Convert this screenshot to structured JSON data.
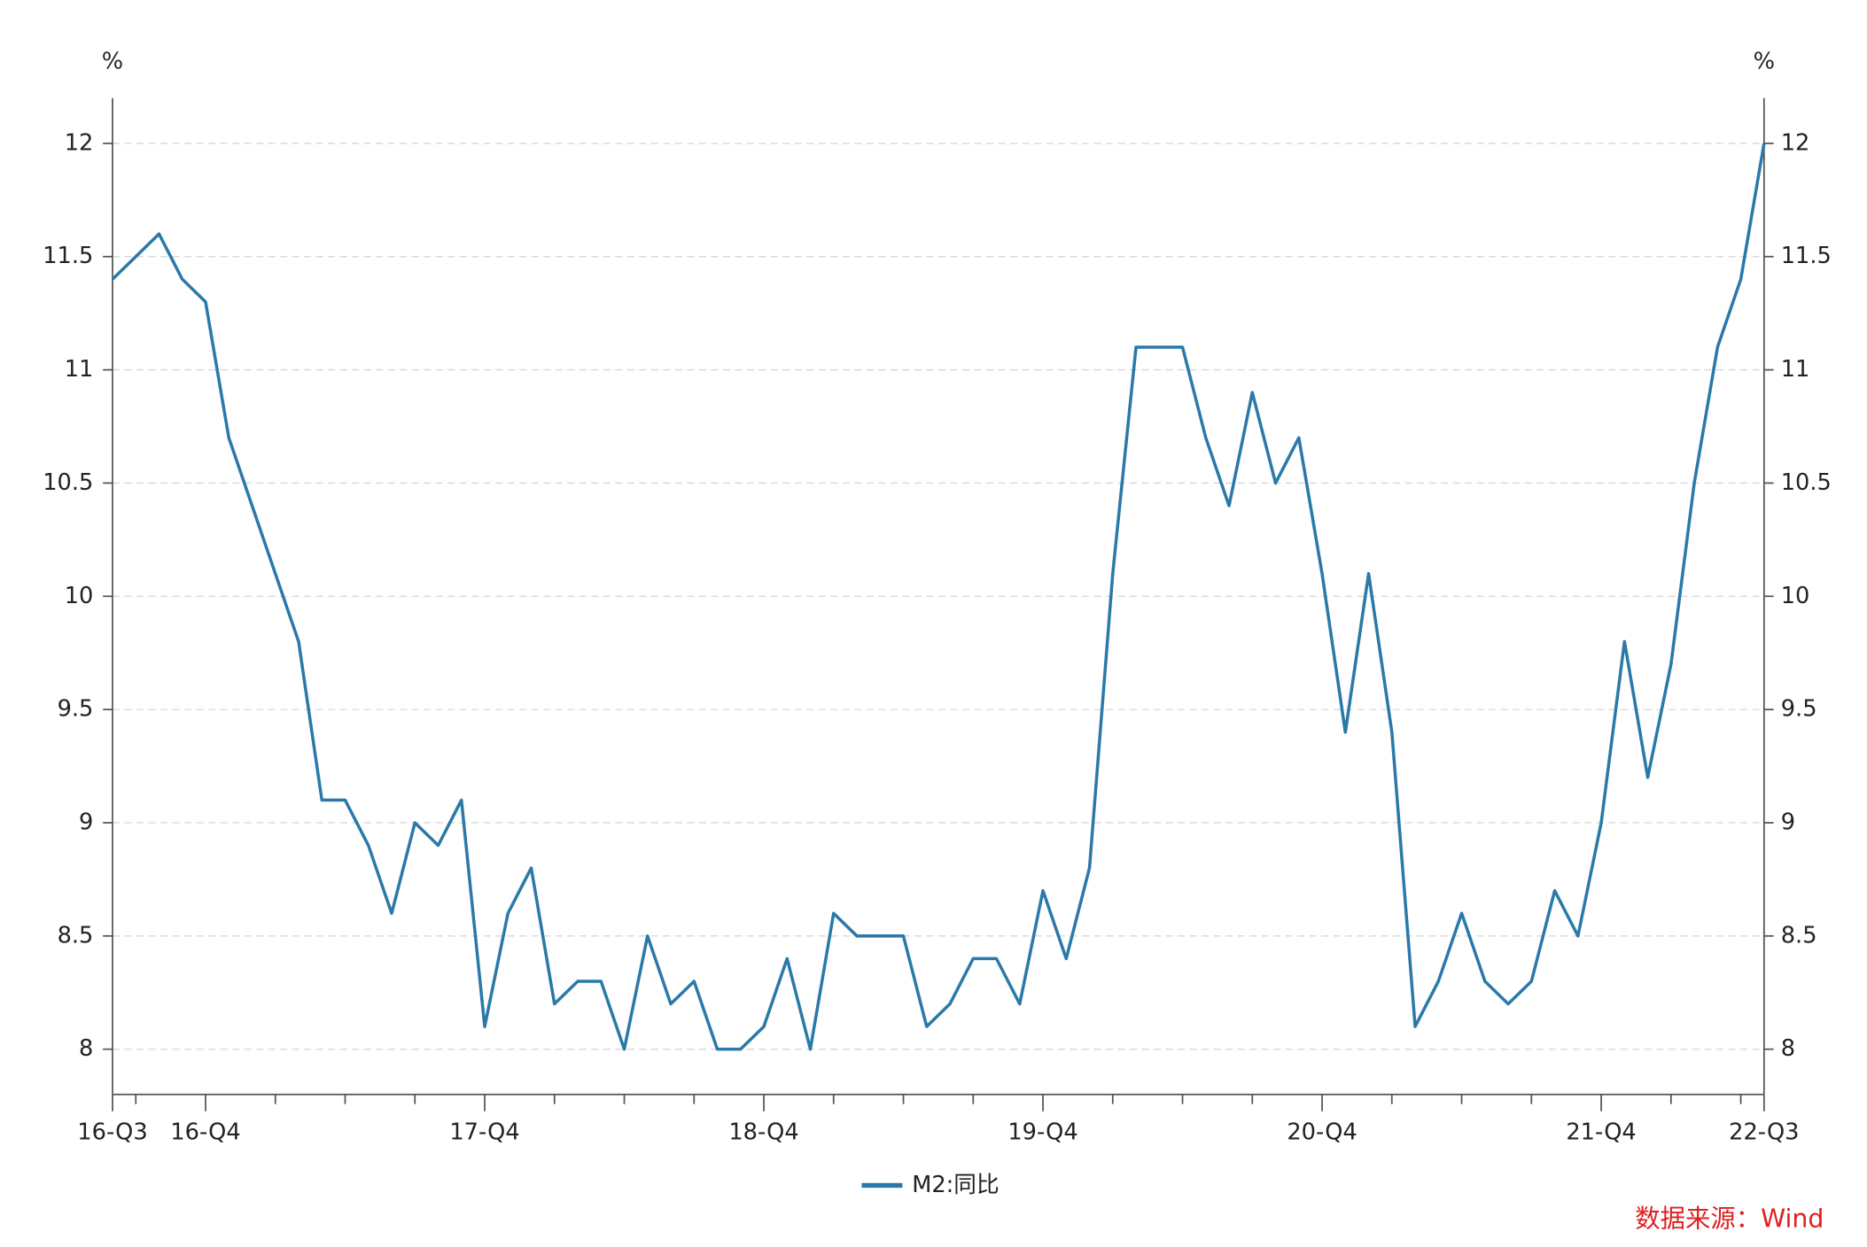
{
  "chart_data": {
    "type": "line",
    "y_label": "%",
    "y2_label": "%",
    "categories": [
      "16-Q3",
      null,
      null,
      null,
      "16-Q4",
      null,
      null,
      null,
      null,
      null,
      null,
      null,
      null,
      null,
      null,
      null,
      "17-Q4",
      null,
      null,
      null,
      null,
      null,
      null,
      null,
      null,
      null,
      null,
      null,
      "18-Q4",
      null,
      null,
      null,
      null,
      null,
      null,
      null,
      null,
      null,
      null,
      null,
      "19-Q4",
      null,
      null,
      null,
      null,
      null,
      null,
      null,
      null,
      null,
      null,
      null,
      "20-Q4",
      null,
      null,
      null,
      null,
      null,
      null,
      null,
      null,
      null,
      null,
      null,
      "21-Q4",
      null,
      null,
      null,
      null,
      null,
      null,
      "22-Q3"
    ],
    "series": [
      {
        "name": "M2:同比",
        "color": "#2a79a8",
        "values": [
          11.4,
          11.5,
          11.6,
          11.4,
          11.3,
          10.7,
          10.4,
          10.1,
          9.8,
          9.1,
          9.1,
          8.9,
          8.6,
          9.0,
          8.9,
          9.1,
          8.1,
          8.6,
          8.8,
          8.2,
          8.3,
          8.3,
          8.0,
          8.5,
          8.2,
          8.3,
          8.0,
          8.0,
          8.1,
          8.4,
          8.0,
          8.6,
          8.5,
          8.5,
          8.5,
          8.1,
          8.2,
          8.4,
          8.4,
          8.2,
          8.7,
          8.4,
          8.8,
          10.1,
          11.1,
          11.1,
          11.1,
          10.7,
          10.4,
          10.9,
          10.5,
          10.7,
          10.1,
          9.4,
          10.1,
          9.4,
          8.1,
          8.3,
          8.6,
          8.3,
          8.2,
          8.3,
          8.7,
          8.5,
          9.0,
          9.8,
          9.2,
          9.7,
          10.5,
          11.1,
          11.4,
          12.0
        ]
      }
    ],
    "ylim": [
      7.8,
      12.2
    ],
    "yticks": [
      8,
      8.5,
      9,
      9.5,
      10,
      10.5,
      11,
      11.5,
      12
    ],
    "y2lim": [
      7.8,
      12.2
    ],
    "y2ticks": [
      8,
      8.5,
      9,
      9.5,
      10,
      10.5,
      11,
      11.5,
      12
    ],
    "grid": true,
    "legend": "bottom",
    "source": "数据来源：Wind"
  }
}
